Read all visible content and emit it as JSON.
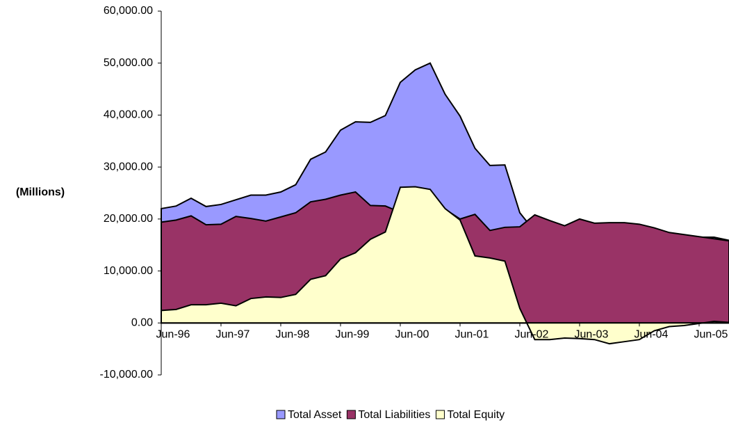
{
  "chart_data": {
    "type": "area",
    "y_label": "(Millions)",
    "categories": [
      "Jun-96",
      null,
      null,
      null,
      "Jun-97",
      null,
      null,
      null,
      "Jun-98",
      null,
      null,
      null,
      "Jun-99",
      null,
      null,
      null,
      "Jun-00",
      null,
      null,
      null,
      "Jun-01",
      null,
      null,
      null,
      "Jun-02",
      null,
      null,
      null,
      "Jun-03",
      null,
      null,
      null,
      "Jun-04",
      null,
      null,
      null,
      "Jun-05",
      null,
      null
    ],
    "series": [
      {
        "name": "Total Asset",
        "color": "#9999ff",
        "values": [
          22000,
          22500,
          24000,
          22400,
          22800,
          23700,
          24600,
          24600,
          25200,
          26600,
          31500,
          32900,
          37100,
          38700,
          38600,
          39900,
          46300,
          48700,
          50000,
          44000,
          39800,
          33600,
          30300,
          30400,
          21200,
          17600,
          16500,
          15800,
          17000,
          16000,
          15300,
          15700,
          15800,
          16800,
          16700,
          16500,
          16500,
          16500,
          15900
        ]
      },
      {
        "name": "Total Liabilities",
        "color": "#993366",
        "values": [
          19400,
          19800,
          20600,
          18900,
          19000,
          20500,
          20100,
          19600,
          20400,
          21200,
          23300,
          23800,
          24600,
          25200,
          22600,
          22500,
          21300,
          22500,
          24200,
          21900,
          20000,
          20900,
          17800,
          18400,
          18500,
          20800,
          19700,
          18700,
          20000,
          19200,
          19300,
          19300,
          19000,
          18300,
          17400,
          17000,
          16600,
          16200,
          15800
        ]
      },
      {
        "name": "Total Equity",
        "color": "#ffffcc",
        "values": [
          2400,
          2600,
          3500,
          3500,
          3800,
          3300,
          4700,
          5000,
          4900,
          5500,
          8400,
          9100,
          12300,
          13500,
          16100,
          17500,
          26100,
          26200,
          25700,
          22000,
          19800,
          12900,
          12500,
          11900,
          2800,
          -3200,
          -3200,
          -2900,
          -3000,
          -3200,
          -4000,
          -3600,
          -3200,
          -1500,
          -700,
          -500,
          -100,
          300,
          100
        ]
      }
    ],
    "ylim": [
      -10000,
      60000
    ],
    "yticks": [
      {
        "value": -10000,
        "label": "-10,000.00"
      },
      {
        "value": 0,
        "label": "0.00"
      },
      {
        "value": 10000,
        "label": "10,000.00"
      },
      {
        "value": 20000,
        "label": "20,000.00"
      },
      {
        "value": 30000,
        "label": "30,000.00"
      },
      {
        "value": 40000,
        "label": "40,000.00"
      },
      {
        "value": 50000,
        "label": "50,000.00"
      },
      {
        "value": 60000,
        "label": "60,000.00"
      }
    ],
    "legend": "bottom"
  }
}
